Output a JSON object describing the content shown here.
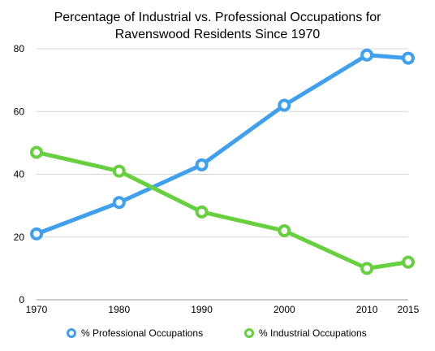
{
  "chart_data": {
    "type": "line",
    "title_lines": [
      "Percentage of Industrial vs. Professional Occupations for",
      "Ravenswood Residents Since 1970"
    ],
    "xlabel": "",
    "ylabel": "",
    "x": [
      1970,
      1980,
      1990,
      2000,
      2010,
      2015
    ],
    "x_tick_labels": [
      "1970",
      "1980",
      "1990",
      "2000",
      "2010",
      "2015"
    ],
    "ylim": [
      0,
      80
    ],
    "y_ticks": [
      0,
      20,
      40,
      60,
      80
    ],
    "y_tick_labels": [
      "0",
      "20",
      "40",
      "60",
      "80"
    ],
    "grid": true,
    "legend_position": "bottom",
    "series": [
      {
        "name": "% Professional Occupations",
        "color": "#3ea0ee",
        "values": [
          21,
          31,
          43,
          62,
          78,
          77
        ]
      },
      {
        "name": "% Industrial Occupations",
        "color": "#66d03e",
        "values": [
          47,
          41,
          28,
          22,
          10,
          12
        ]
      }
    ]
  }
}
